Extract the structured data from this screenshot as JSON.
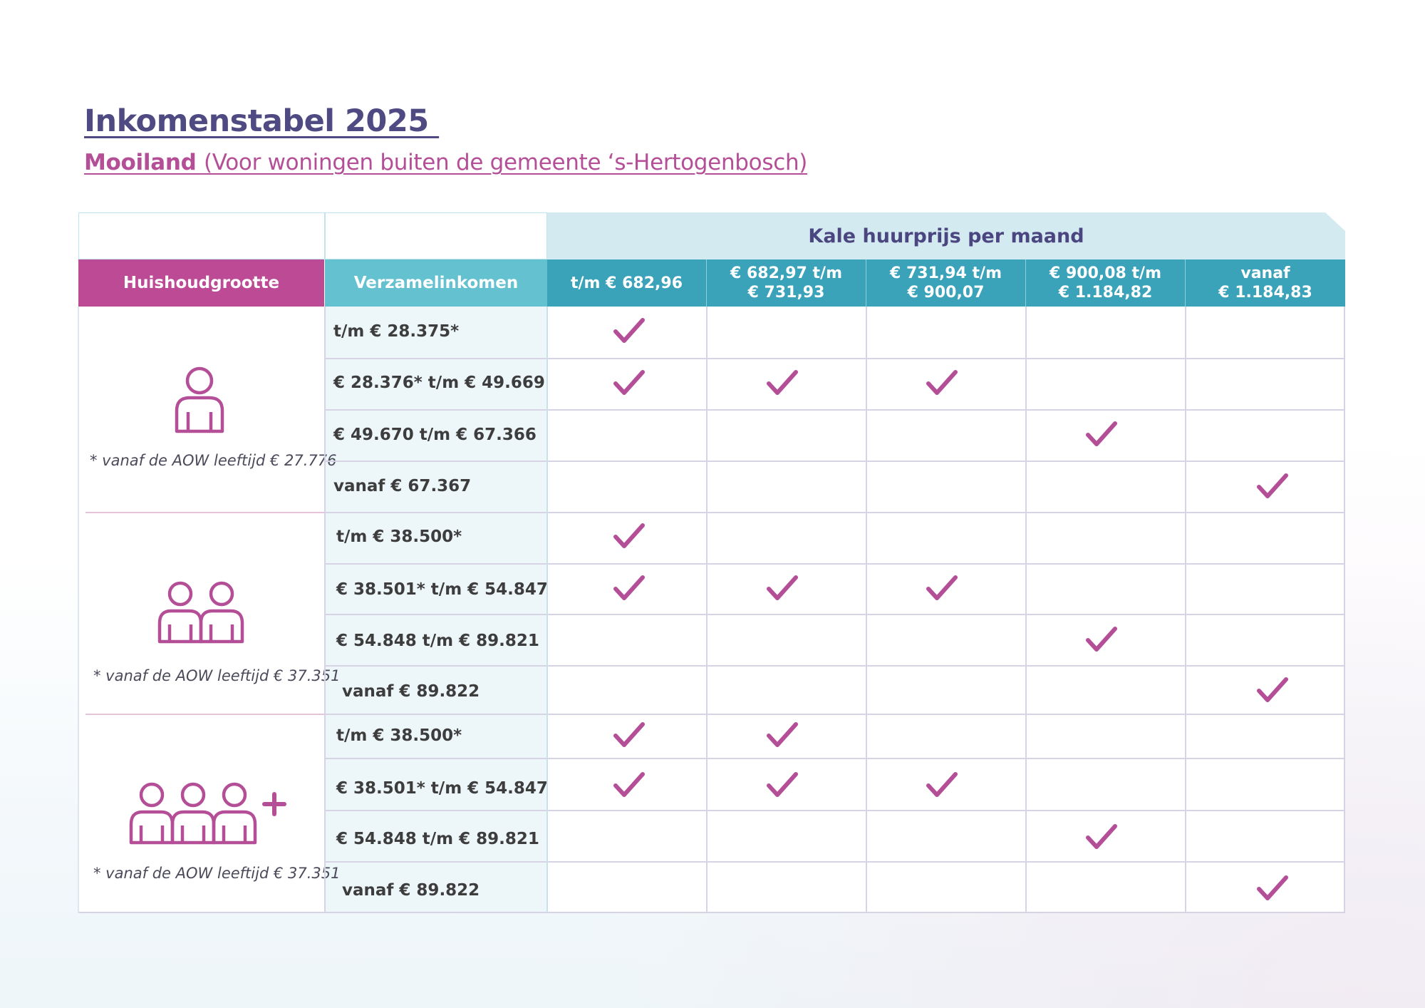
{
  "title": "Inkomenstabel 2025 ",
  "subtitle": {
    "bold": "Mooiland ",
    "rest": "(Voor woningen buiten de gemeente ‘s-Hertogenbosch)"
  },
  "table": {
    "group_header": "Kale huurprijs per maand",
    "household_header": "Huishoudgrootte",
    "income_header": "Verzamelinkomen",
    "price_columns": [
      {
        "line1": "t/m € 682,96",
        "line2": ""
      },
      {
        "line1": "€ 682,97 t/m",
        "line2": "€ 731,93"
      },
      {
        "line1": "€ 731,94 t/m",
        "line2": "€ 900,07"
      },
      {
        "line1": "€ 900,08 t/m",
        "line2": "€ 1.184,82"
      },
      {
        "line1": "vanaf",
        "line2": "€ 1.184,83"
      }
    ],
    "groups": [
      {
        "household_icon": "single-person-icon",
        "note": "* vanaf de AOW leeftijd € 27.776",
        "rows": [
          {
            "income": "t/m € 28.375*",
            "checks": [
              true,
              false,
              false,
              false,
              false
            ]
          },
          {
            "income": "€ 28.376* t/m € 49.669",
            "checks": [
              true,
              true,
              true,
              false,
              false
            ]
          },
          {
            "income": "€ 49.670 t/m € 67.366",
            "checks": [
              false,
              false,
              false,
              true,
              false
            ]
          },
          {
            "income": "vanaf € 67.367",
            "checks": [
              false,
              false,
              false,
              false,
              true
            ]
          }
        ]
      },
      {
        "household_icon": "two-persons-icon",
        "note": "* vanaf de AOW leeftijd € 37.351",
        "rows": [
          {
            "income": "t/m € 38.500*",
            "checks": [
              true,
              false,
              false,
              false,
              false
            ]
          },
          {
            "income": "€ 38.501* t/m € 54.847",
            "checks": [
              true,
              true,
              true,
              false,
              false
            ]
          },
          {
            "income": "€ 54.848 t/m € 89.821",
            "checks": [
              false,
              false,
              false,
              true,
              false
            ]
          },
          {
            "income": "vanaf € 89.822",
            "checks": [
              false,
              false,
              false,
              false,
              true
            ]
          }
        ]
      },
      {
        "household_icon": "three-plus-persons-icon",
        "note": "* vanaf de AOW leeftijd € 37.351",
        "rows": [
          {
            "income": "t/m € 38.500*",
            "checks": [
              true,
              true,
              false,
              false,
              false
            ]
          },
          {
            "income": "€ 38.501* t/m € 54.847",
            "checks": [
              true,
              true,
              true,
              false,
              false
            ]
          },
          {
            "income": "€ 54.848 t/m € 89.821",
            "checks": [
              false,
              false,
              false,
              true,
              false
            ]
          },
          {
            "income": "vanaf € 89.822",
            "checks": [
              false,
              false,
              false,
              false,
              true
            ]
          }
        ]
      }
    ]
  },
  "colors": {
    "purple": "#4f4a82",
    "magenta": "#bd4a94",
    "teal": "#3aa3ba",
    "light_teal": "#63c1d0",
    "check": "#b44f97"
  }
}
